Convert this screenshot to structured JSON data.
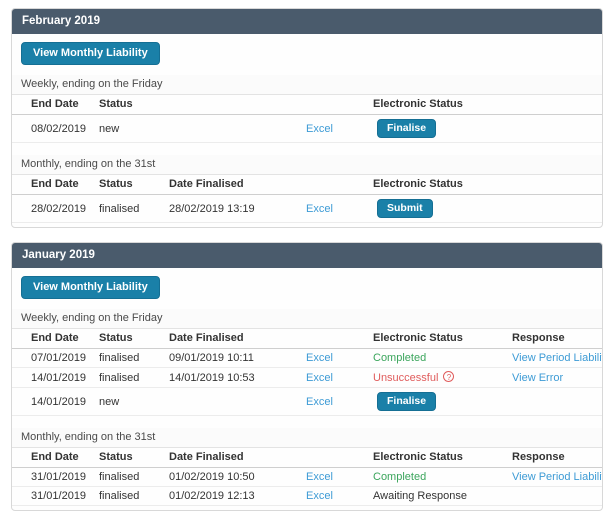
{
  "colors": {
    "header_bg": "#4a5b6c",
    "accent_button": "#1a80a8",
    "link": "#3d9bd5",
    "success": "#3ba55c",
    "danger": "#e05c5c"
  },
  "sections": [
    {
      "title": "February 2019",
      "action_button": "View Monthly Liability",
      "tables": [
        {
          "label": "Weekly, ending on the Friday",
          "headers": {
            "end_date": "End Date",
            "status": "Status",
            "date_finalised": "",
            "excel": "",
            "electronic_status": "Electronic Status",
            "response": ""
          },
          "rows": [
            {
              "end_date": "08/02/2019",
              "status": "new",
              "date_finalised": "",
              "excel_link": "Excel",
              "electronic_status": {
                "type": "button",
                "label": "Finalise"
              },
              "response": ""
            }
          ]
        },
        {
          "label": "Monthly, ending on the 31st",
          "headers": {
            "end_date": "End Date",
            "status": "Status",
            "date_finalised": "Date Finalised",
            "excel": "",
            "electronic_status": "Electronic Status",
            "response": ""
          },
          "rows": [
            {
              "end_date": "28/02/2019",
              "status": "finalised",
              "date_finalised": "28/02/2019 13:19",
              "excel_link": "Excel",
              "electronic_status": {
                "type": "button",
                "label": "Submit"
              },
              "response": ""
            }
          ]
        }
      ]
    },
    {
      "title": "January 2019",
      "action_button": "View Monthly Liability",
      "tables": [
        {
          "label": "Weekly, ending on the Friday",
          "headers": {
            "end_date": "End Date",
            "status": "Status",
            "date_finalised": "Date Finalised",
            "excel": "",
            "electronic_status": "Electronic Status",
            "response": "Response"
          },
          "rows": [
            {
              "end_date": "07/01/2019",
              "status": "finalised",
              "date_finalised": "09/01/2019 10:11",
              "excel_link": "Excel",
              "electronic_status": {
                "type": "success",
                "label": "Completed"
              },
              "response": "View Period Liability"
            },
            {
              "end_date": "14/01/2019",
              "status": "finalised",
              "date_finalised": "14/01/2019 10:53",
              "excel_link": "Excel",
              "electronic_status": {
                "type": "danger",
                "label": "Unsuccessful",
                "icon": "question-circle"
              },
              "response": "View Error"
            },
            {
              "end_date": "14/01/2019",
              "status": "new",
              "date_finalised": "",
              "excel_link": "Excel",
              "electronic_status": {
                "type": "button",
                "label": "Finalise"
              },
              "response": ""
            }
          ]
        },
        {
          "label": "Monthly, ending on the 31st",
          "headers": {
            "end_date": "End Date",
            "status": "Status",
            "date_finalised": "Date Finalised",
            "excel": "",
            "electronic_status": "Electronic Status",
            "response": "Response"
          },
          "rows": [
            {
              "end_date": "31/01/2019",
              "status": "finalised",
              "date_finalised": "01/02/2019 10:50",
              "excel_link": "Excel",
              "electronic_status": {
                "type": "success",
                "label": "Completed"
              },
              "response": "View Period Liability"
            },
            {
              "end_date": "31/01/2019",
              "status": "finalised",
              "date_finalised": "01/02/2019 12:13",
              "excel_link": "Excel",
              "electronic_status": {
                "type": "text",
                "label": "Awaiting Response"
              },
              "response": ""
            }
          ]
        }
      ]
    }
  ]
}
